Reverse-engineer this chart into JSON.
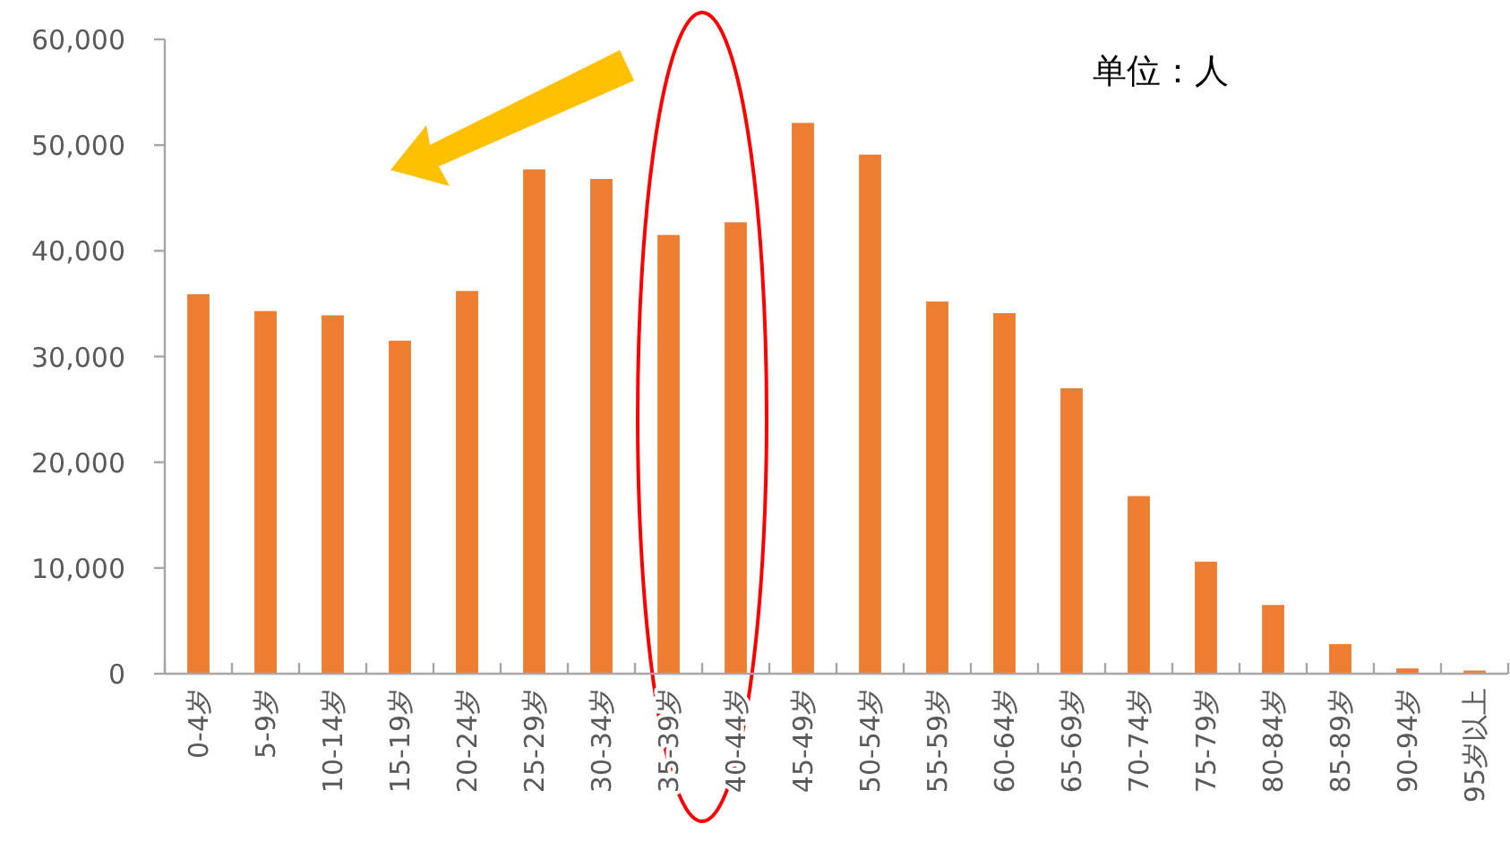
{
  "chart_data": {
    "type": "bar",
    "categories": [
      "0-4岁",
      "5-9岁",
      "10-14岁",
      "15-19岁",
      "20-24岁",
      "25-29岁",
      "30-34岁",
      "35-39岁",
      "40-44岁",
      "45-49岁",
      "50-54岁",
      "55-59岁",
      "60-64岁",
      "65-69岁",
      "70-74岁",
      "75-79岁",
      "80-84岁",
      "85-89岁",
      "90-94岁",
      "95岁以上"
    ],
    "values": [
      35900,
      34300,
      33900,
      31500,
      36200,
      47700,
      46800,
      41500,
      42700,
      52100,
      49100,
      35200,
      34100,
      27000,
      16800,
      10600,
      6500,
      2800,
      500,
      300
    ],
    "color": "#ed7d31",
    "ylim": [
      0,
      60000
    ],
    "yticks": [
      {
        "value": 0,
        "label": "0"
      },
      {
        "value": 10000,
        "label": "10,000"
      },
      {
        "value": 20000,
        "label": "20,000"
      },
      {
        "value": 30000,
        "label": "30,000"
      },
      {
        "value": 40000,
        "label": "40,000"
      },
      {
        "value": 50000,
        "label": "50,000"
      },
      {
        "value": 60000,
        "label": "60,000"
      }
    ],
    "annotations": [
      "单位：人"
    ],
    "grid": false
  }
}
